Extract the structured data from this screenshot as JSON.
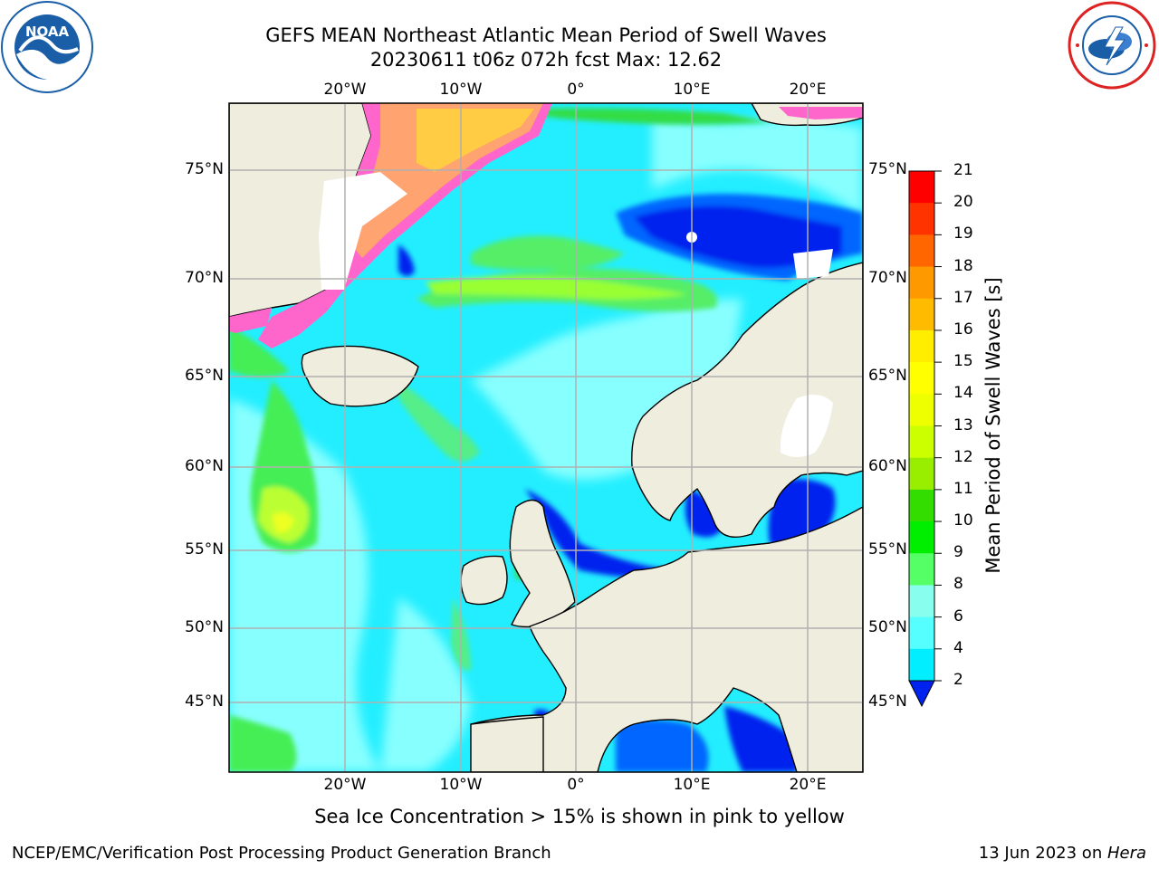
{
  "header": {
    "title_line1": "GEFS MEAN Northeast Atlantic Mean Period of Swell Waves",
    "title_line2": "20230611 t06z 072h fcst   Max: 12.62"
  },
  "logos": {
    "left": {
      "icon": "noaa-logo",
      "text": "NOAA"
    },
    "right": {
      "icon": "nws-logo"
    }
  },
  "map": {
    "lon_labels": [
      "20°W",
      "10°W",
      "0°",
      "10°E",
      "20°E"
    ],
    "lat_labels": [
      "75°N",
      "70°N",
      "65°N",
      "60°N",
      "55°N",
      "50°N",
      "45°N"
    ],
    "colors": {
      "land": "#efedde",
      "ocean_base": "#22eeff",
      "ice_high": "#ff66cc",
      "ice_low": "#ffcc44"
    }
  },
  "colorbar": {
    "label": "Mean Period of Swell Waves [s]",
    "ticks": [
      "21",
      "20",
      "19",
      "18",
      "17",
      "16",
      "15",
      "14",
      "13",
      "12",
      "11",
      "10",
      "9",
      "8",
      "6",
      "4",
      "2"
    ],
    "colors": [
      "#ff0000",
      "#ff3300",
      "#ff6600",
      "#ff9900",
      "#ffbb00",
      "#ffee00",
      "#ffff00",
      "#eeff00",
      "#ccff00",
      "#99ee00",
      "#33dd00",
      "#00ee00",
      "#55ff66",
      "#88ffee",
      "#55ffff",
      "#00eeff",
      "#0066ff"
    ]
  },
  "caption": "Sea Ice Concentration > 15% is shown in pink to yellow",
  "footer": {
    "left": "NCEP/EMC/Verification Post Processing Product Generation Branch",
    "right_prefix": "13 Jun 2023 on ",
    "right_machine": "Hera"
  }
}
